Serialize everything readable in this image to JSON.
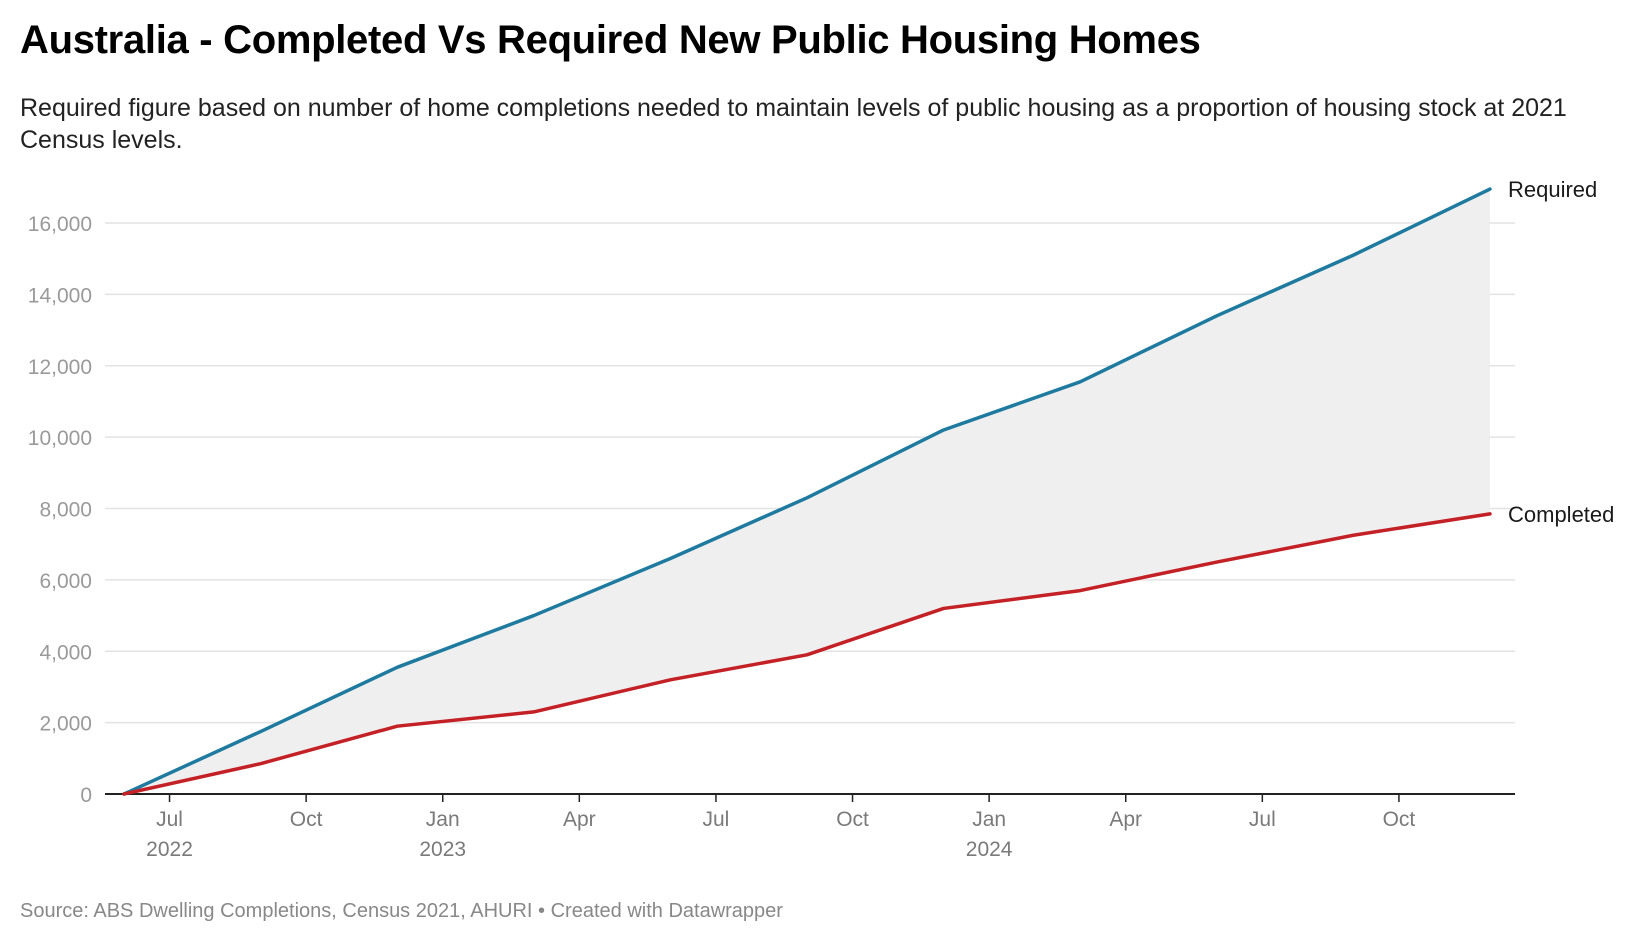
{
  "title": "Australia - Completed Vs Required New Public Housing Homes",
  "subtitle": "Required figure based on number of home completions needed to maintain levels of public housing as a proportion of housing stock at 2021 Census levels.",
  "footer": {
    "source": "Source: ABS Dwelling Completions, Census 2021, AHURI",
    "separator": " • ",
    "credit": "Created with Datawrapper"
  },
  "chart_data": {
    "type": "line",
    "title": "Australia - Completed Vs Required New Public Housing Homes",
    "xlabel": "",
    "ylabel": "",
    "ylim": [
      0,
      16000
    ],
    "grid": true,
    "fill_between": true,
    "fill_color": "#efefef",
    "y_ticks": [
      0,
      2000,
      4000,
      6000,
      8000,
      10000,
      12000,
      14000,
      16000
    ],
    "y_tick_labels": [
      "0",
      "2,000",
      "4,000",
      "6,000",
      "8,000",
      "10,000",
      "12,000",
      "14,000",
      "16,000"
    ],
    "x_domain": [
      "2022-06",
      "2024-12"
    ],
    "x_ticks": [
      {
        "date": "2022-07",
        "month": "Jul",
        "year": "2022"
      },
      {
        "date": "2022-10",
        "month": "Oct",
        "year": ""
      },
      {
        "date": "2023-01",
        "month": "Jan",
        "year": "2023"
      },
      {
        "date": "2023-04",
        "month": "Apr",
        "year": ""
      },
      {
        "date": "2023-07",
        "month": "Jul",
        "year": ""
      },
      {
        "date": "2023-10",
        "month": "Oct",
        "year": ""
      },
      {
        "date": "2024-01",
        "month": "Jan",
        "year": "2024"
      },
      {
        "date": "2024-04",
        "month": "Apr",
        "year": ""
      },
      {
        "date": "2024-07",
        "month": "Jul",
        "year": ""
      },
      {
        "date": "2024-10",
        "month": "Oct",
        "year": ""
      }
    ],
    "x": [
      "2022-06",
      "2022-09",
      "2022-12",
      "2023-03",
      "2023-06",
      "2023-09",
      "2023-12",
      "2024-03",
      "2024-06",
      "2024-09",
      "2024-12"
    ],
    "series": [
      {
        "name": "Required",
        "color": "#1f7a9f",
        "values": [
          0,
          1750,
          3550,
          5000,
          6600,
          8300,
          10200,
          11550,
          13400,
          15100,
          16950
        ]
      },
      {
        "name": "Completed",
        "color": "#c42127",
        "values": [
          0,
          850,
          1900,
          2300,
          3200,
          3900,
          5200,
          5700,
          6500,
          7250,
          7850
        ]
      }
    ]
  }
}
